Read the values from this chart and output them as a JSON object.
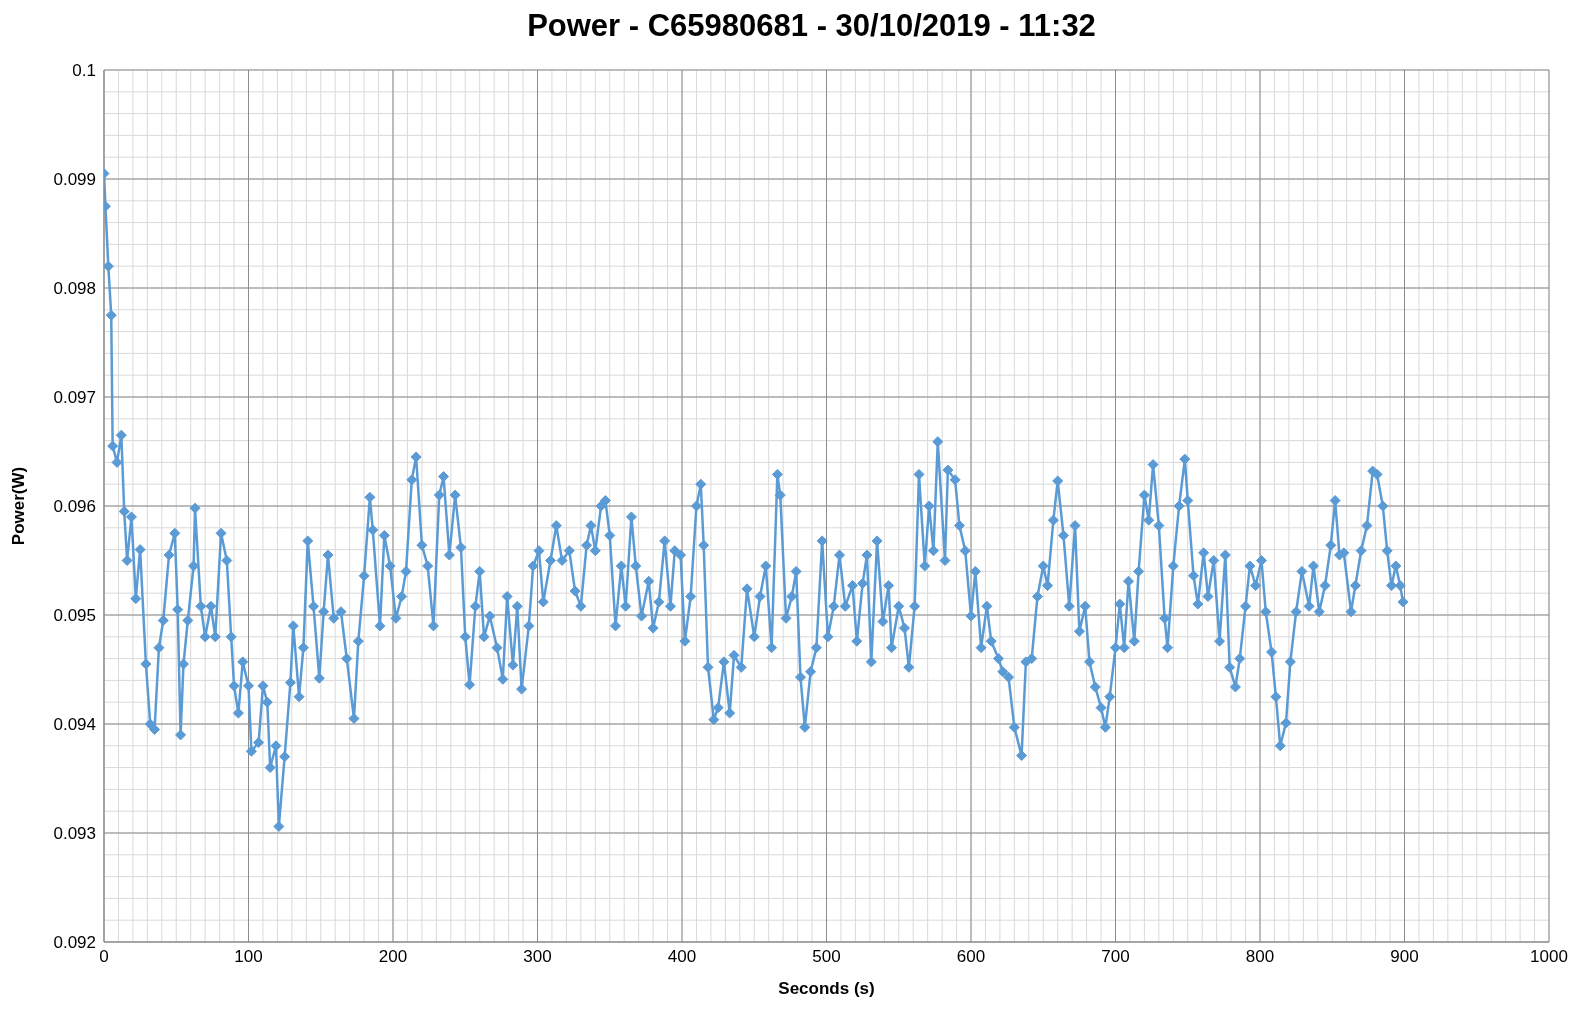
{
  "chart_data": {
    "type": "line",
    "title": "Power - C65980681 - 30/10/2019 - 11:32",
    "xlabel": "Seconds (s)",
    "ylabel": "Power(W)",
    "xlim": [
      0,
      1000
    ],
    "xticks": [
      0,
      100,
      200,
      300,
      400,
      500,
      600,
      700,
      800,
      900,
      1000
    ],
    "ylim": [
      0.092,
      0.1
    ],
    "yticks": [
      0.092,
      0.093,
      0.094,
      0.095,
      0.096,
      0.097,
      0.098,
      0.099,
      0.1
    ],
    "grid": true,
    "marker": "diamond",
    "line_style": "solid",
    "series": [
      {
        "color": "#5b9bd5",
        "x": [
          0,
          1,
          3,
          5,
          6,
          9,
          12,
          14,
          16,
          19,
          22,
          25,
          29,
          32,
          35,
          38,
          41,
          45,
          49,
          51,
          53,
          55,
          58,
          62,
          63,
          67,
          70,
          74,
          77,
          81,
          85,
          88,
          90,
          93,
          96,
          100,
          102,
          107,
          110,
          113,
          115,
          119,
          121,
          125,
          129,
          131,
          135,
          138,
          141,
          145,
          149,
          152,
          155,
          159,
          164,
          168,
          173,
          176,
          180,
          184,
          186,
          191,
          194,
          198,
          202,
          206,
          209,
          213,
          216,
          220,
          224,
          228,
          232,
          235,
          239,
          243,
          247,
          250,
          253,
          257,
          260,
          263,
          267,
          272,
          276,
          279,
          283,
          286,
          289,
          294,
          297,
          301,
          304,
          309,
          313,
          317,
          322,
          326,
          330,
          334,
          337,
          340,
          344,
          347,
          350,
          354,
          358,
          361,
          365,
          368,
          372,
          377,
          380,
          384,
          388,
          392,
          395,
          399,
          402,
          406,
          410,
          413,
          415,
          418,
          422,
          425,
          429,
          433,
          436,
          441,
          445,
          450,
          454,
          458,
          462,
          466,
          468,
          472,
          476,
          479,
          482,
          485,
          489,
          493,
          497,
          501,
          505,
          509,
          513,
          518,
          521,
          525,
          528,
          531,
          535,
          539,
          543,
          545,
          550,
          554,
          557,
          561,
          564,
          568,
          571,
          574,
          577,
          582,
          584,
          589,
          592,
          596,
          600,
          603,
          607,
          611,
          614,
          619,
          622,
          626,
          630,
          635,
          638,
          642,
          646,
          650,
          653,
          657,
          660,
          664,
          668,
          672,
          675,
          679,
          682,
          686,
          690,
          693,
          696,
          700,
          703,
          706,
          709,
          713,
          716,
          720,
          723,
          726,
          730,
          734,
          736,
          740,
          744,
          748,
          750,
          754,
          757,
          761,
          764,
          768,
          772,
          776,
          779,
          783,
          786,
          790,
          793,
          797,
          801,
          804,
          808,
          811,
          814,
          818,
          821,
          825,
          829,
          834,
          837,
          841,
          845,
          849,
          852,
          855,
          858,
          863,
          866,
          870,
          874,
          878,
          881,
          885,
          888,
          891,
          894,
          897,
          899
        ],
        "values": [
          0.09905,
          0.09875,
          0.0982,
          0.09775,
          0.09655,
          0.0964,
          0.09665,
          0.09595,
          0.0955,
          0.0959,
          0.09515,
          0.0956,
          0.09455,
          0.094,
          0.09395,
          0.0947,
          0.09495,
          0.09555,
          0.09575,
          0.09505,
          0.0939,
          0.09455,
          0.09495,
          0.09545,
          0.09598,
          0.09508,
          0.0948,
          0.09508,
          0.0948,
          0.09575,
          0.0955,
          0.0948,
          0.09435,
          0.0941,
          0.09457,
          0.09435,
          0.09375,
          0.09383,
          0.09435,
          0.0942,
          0.0936,
          0.0938,
          0.09306,
          0.0937,
          0.09438,
          0.0949,
          0.09425,
          0.0947,
          0.09568,
          0.09508,
          0.09442,
          0.09503,
          0.09555,
          0.09497,
          0.09503,
          0.0946,
          0.09405,
          0.09476,
          0.09536,
          0.09608,
          0.09578,
          0.0949,
          0.09573,
          0.09545,
          0.09497,
          0.09517,
          0.0954,
          0.09624,
          0.09645,
          0.09564,
          0.09545,
          0.0949,
          0.0961,
          0.09627,
          0.09555,
          0.0961,
          0.09562,
          0.0948,
          0.09436,
          0.09508,
          0.0954,
          0.0948,
          0.09499,
          0.0947,
          0.09441,
          0.09517,
          0.09454,
          0.09508,
          0.09432,
          0.0949,
          0.09545,
          0.09559,
          0.09512,
          0.0955,
          0.09582,
          0.0955,
          0.09559,
          0.09522,
          0.09508,
          0.09564,
          0.09582,
          0.09559,
          0.096,
          0.09605,
          0.09573,
          0.0949,
          0.09545,
          0.09508,
          0.0959,
          0.09545,
          0.09499,
          0.09531,
          0.09488,
          0.09512,
          0.09568,
          0.09508,
          0.09559,
          0.09555,
          0.09476,
          0.09517,
          0.096,
          0.0962,
          0.09564,
          0.09452,
          0.09404,
          0.09415,
          0.09457,
          0.0941,
          0.09463,
          0.09452,
          0.09524,
          0.0948,
          0.09517,
          0.09545,
          0.0947,
          0.09629,
          0.0961,
          0.09497,
          0.09517,
          0.0954,
          0.09443,
          0.09397,
          0.09448,
          0.0947,
          0.09568,
          0.0948,
          0.09508,
          0.09555,
          0.09508,
          0.09527,
          0.09476,
          0.09529,
          0.09555,
          0.09457,
          0.09568,
          0.09494,
          0.09527,
          0.0947,
          0.09508,
          0.09488,
          0.09452,
          0.09508,
          0.09629,
          0.09545,
          0.096,
          0.09559,
          0.09659,
          0.0955,
          0.09633,
          0.09624,
          0.09582,
          0.09559,
          0.09499,
          0.0954,
          0.0947,
          0.09508,
          0.09476,
          0.0946,
          0.09448,
          0.09443,
          0.09397,
          0.09371,
          0.09457,
          0.0946,
          0.09517,
          0.09545,
          0.09527,
          0.09587,
          0.09623,
          0.09573,
          0.09508,
          0.09582,
          0.09485,
          0.09508,
          0.09457,
          0.09434,
          0.09415,
          0.09397,
          0.09425,
          0.0947,
          0.0951,
          0.0947,
          0.09531,
          0.09476,
          0.0954,
          0.0961,
          0.09587,
          0.09638,
          0.09582,
          0.09497,
          0.0947,
          0.09545,
          0.096,
          0.09643,
          0.09605,
          0.09536,
          0.0951,
          0.09557,
          0.09517,
          0.0955,
          0.09476,
          0.09555,
          0.09452,
          0.09434,
          0.0946,
          0.09508,
          0.09545,
          0.09527,
          0.0955,
          0.09503,
          0.09466,
          0.09425,
          0.0938,
          0.09401,
          0.09457,
          0.09503,
          0.0954,
          0.09508,
          0.09545,
          0.09503,
          0.09527,
          0.09564,
          0.09605,
          0.09555,
          0.09557,
          0.09503,
          0.09527,
          0.09559,
          0.09582,
          0.09632,
          0.09629,
          0.096,
          0.09559,
          0.09527,
          0.09545,
          0.09527,
          0.09512
        ]
      }
    ]
  }
}
